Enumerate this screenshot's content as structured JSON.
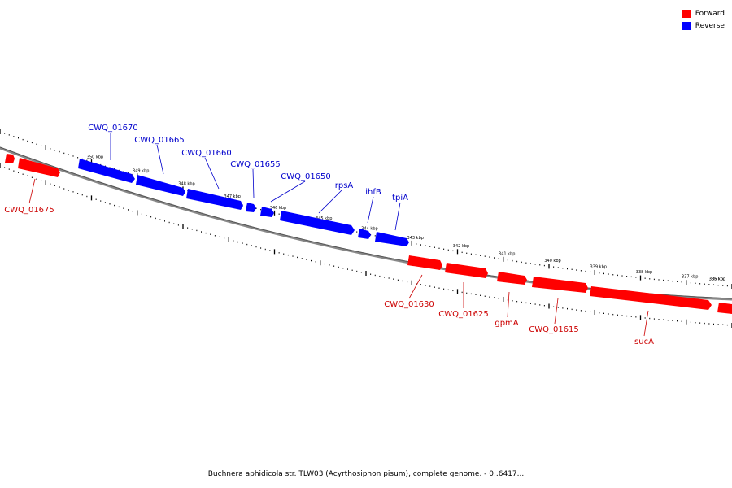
{
  "legend": {
    "forward_label": "Forward",
    "reverse_label": "Reverse",
    "forward_color": "#ff0000",
    "reverse_color": "#0000ff"
  },
  "caption": "Buchnera aphidicola str. TLW03 (Acyrthosiphon pisum), complete genome. - 0..6417...",
  "ticks": {
    "outer": [
      "350 kbp",
      "349 kbp",
      "348 kbp",
      "347 kbp",
      "346 kbp",
      "345 kbp",
      "344 kbp",
      "343 kbp",
      "342 kbp",
      "341 kbp",
      "340 kbp",
      "339 kbp",
      "338 kbp",
      "337 kbp",
      "336 kbp",
      "335 kbp"
    ]
  },
  "genes": {
    "reverse": [
      {
        "label": "CWQ_01670"
      },
      {
        "label": "CWQ_01665"
      },
      {
        "label": "CWQ_01660"
      },
      {
        "label": "CWQ_01655"
      },
      {
        "label": "CWQ_01650"
      },
      {
        "label": "rpsA"
      },
      {
        "label": "ihfB"
      },
      {
        "label": "tpiA"
      }
    ],
    "forward": [
      {
        "label": "CWQ_01675"
      },
      {
        "label": "CWQ_01630"
      },
      {
        "label": "CWQ_01625"
      },
      {
        "label": "gpmA"
      },
      {
        "label": "CWQ_01615"
      },
      {
        "label": "sucA"
      }
    ]
  }
}
